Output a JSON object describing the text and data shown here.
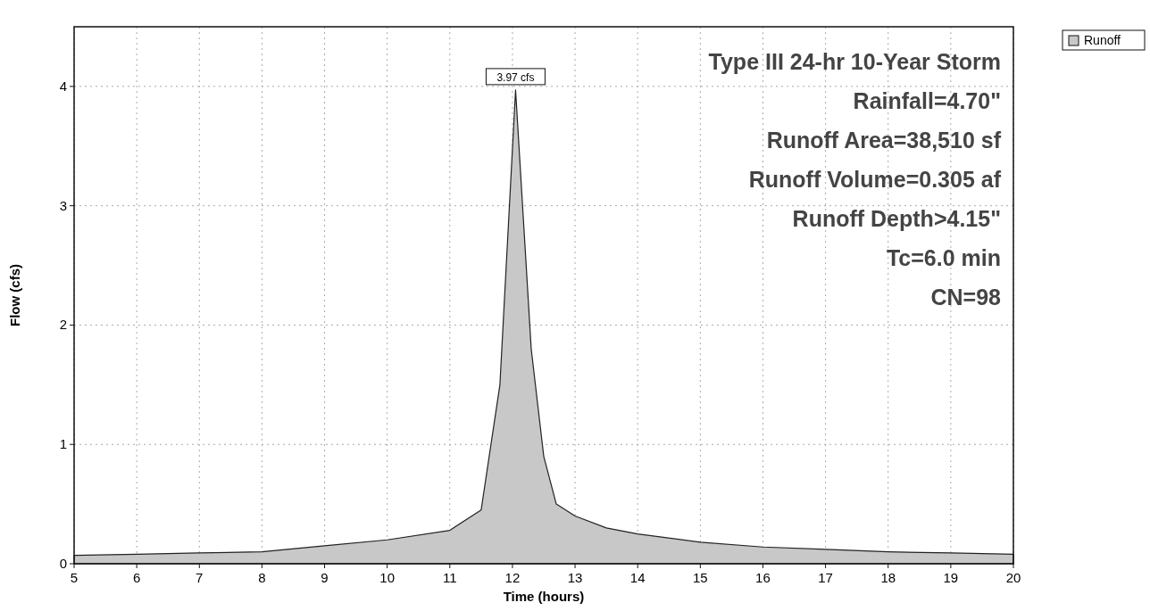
{
  "chart_data": {
    "type": "area",
    "xlabel": "Time  (hours)",
    "ylabel": "Flow  (cfs)",
    "x": [
      5,
      6,
      7,
      8,
      9,
      10,
      11,
      11.5,
      11.8,
      12.05,
      12.3,
      12.5,
      12.7,
      13,
      13.5,
      14,
      15,
      16,
      17,
      18,
      19,
      20
    ],
    "series": [
      {
        "name": "Runoff",
        "color": "#c8c8c8",
        "values": [
          0.07,
          0.08,
          0.09,
          0.1,
          0.15,
          0.2,
          0.28,
          0.45,
          1.5,
          3.97,
          1.8,
          0.9,
          0.5,
          0.4,
          0.3,
          0.25,
          0.18,
          0.14,
          0.12,
          0.1,
          0.09,
          0.08
        ]
      }
    ],
    "xlim": [
      5,
      20
    ],
    "xticks": [
      5,
      6,
      7,
      8,
      9,
      10,
      11,
      12,
      13,
      14,
      15,
      16,
      17,
      18,
      19,
      20
    ],
    "ylim": [
      0,
      4.5
    ],
    "yticks": [
      0,
      1,
      2,
      3,
      4
    ],
    "grid": true,
    "legend": "top right",
    "annotations": [
      {
        "text": "3.97 cfs",
        "x": 12.05,
        "y": 3.97
      },
      "Type III 24-hr 10-Year Storm",
      "Rainfall=4.70\"",
      "Runoff Area=38,510 sf",
      "Runoff Volume=0.305 af",
      "Runoff Depth>4.15\"",
      "Tc=6.0 min",
      "CN=98"
    ]
  }
}
